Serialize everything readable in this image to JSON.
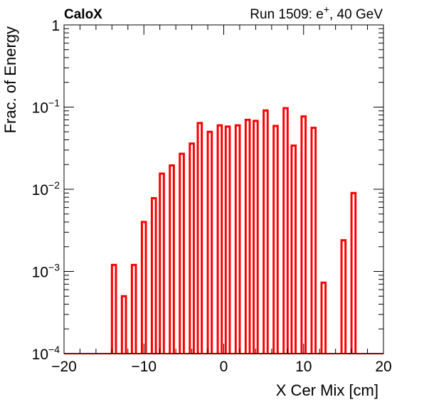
{
  "header": {
    "experiment": "CaloX",
    "run_prefix": "Run 1509: e",
    "run_charge": "+",
    "run_suffix": ", 40 GeV"
  },
  "chart_data": {
    "type": "bar",
    "xlabel": "X Cer Mix [cm]",
    "ylabel": "Frac. of Energy",
    "xlim": [
      -20,
      20
    ],
    "ylim": [
      0.0001,
      1
    ],
    "yscale": "log",
    "grid": false,
    "x_ticks": [
      "−20",
      "−10",
      "0",
      "10",
      "20"
    ],
    "y_ticks": [
      {
        "base": "1",
        "exp": ""
      },
      {
        "base": "10",
        "exp": "−1"
      },
      {
        "base": "10",
        "exp": "−2"
      },
      {
        "base": "10",
        "exp": "−3"
      },
      {
        "base": "10",
        "exp": "−4"
      }
    ],
    "bar_color": "#ff0000",
    "bar_width": 0.5,
    "bars": [
      {
        "x": -13.75,
        "y": 0.0012
      },
      {
        "x": -12.5,
        "y": 0.0005
      },
      {
        "x": -11.25,
        "y": 0.0012
      },
      {
        "x": -10.0,
        "y": 0.004
      },
      {
        "x": -8.75,
        "y": 0.0078
      },
      {
        "x": -7.75,
        "y": 0.0155
      },
      {
        "x": -6.5,
        "y": 0.0195
      },
      {
        "x": -5.25,
        "y": 0.027
      },
      {
        "x": -4.0,
        "y": 0.036
      },
      {
        "x": -3.0,
        "y": 0.064
      },
      {
        "x": -1.75,
        "y": 0.05
      },
      {
        "x": -0.5,
        "y": 0.06
      },
      {
        "x": 0.5,
        "y": 0.058
      },
      {
        "x": 1.75,
        "y": 0.06
      },
      {
        "x": 3.0,
        "y": 0.07
      },
      {
        "x": 4.0,
        "y": 0.068
      },
      {
        "x": 5.25,
        "y": 0.091
      },
      {
        "x": 6.5,
        "y": 0.059
      },
      {
        "x": 7.75,
        "y": 0.097
      },
      {
        "x": 8.75,
        "y": 0.034
      },
      {
        "x": 10.0,
        "y": 0.077
      },
      {
        "x": 11.25,
        "y": 0.056
      },
      {
        "x": 12.5,
        "y": 0.00073
      },
      {
        "x": 15.0,
        "y": 0.0024
      },
      {
        "x": 16.25,
        "y": 0.009
      }
    ]
  }
}
